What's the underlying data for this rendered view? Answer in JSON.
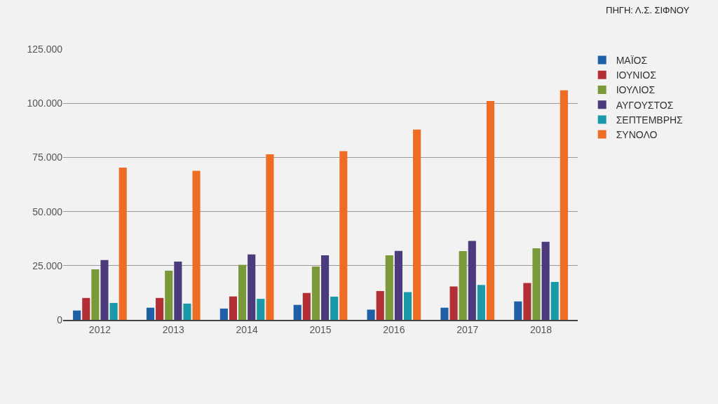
{
  "chart_data": {
    "type": "bar",
    "categories": [
      "2012",
      "2013",
      "2014",
      "2015",
      "2016",
      "2017",
      "2018"
    ],
    "series": [
      {
        "name": "ΜΑΪΟΣ",
        "color": "#1f5fa8",
        "values": [
          4300,
          5600,
          5200,
          6900,
          4700,
          5600,
          8500
        ]
      },
      {
        "name": "ΙΟΥΝΙΟΣ",
        "color": "#b22f35",
        "values": [
          10100,
          10100,
          10800,
          12400,
          13300,
          15400,
          17000
        ]
      },
      {
        "name": "ΙΟΥΛΙΟΣ",
        "color": "#7a9a3a",
        "values": [
          23300,
          22700,
          25400,
          24600,
          29800,
          31700,
          33000
        ]
      },
      {
        "name": "ΑΥΓΟΥΣΤΟΣ",
        "color": "#4b3b7c",
        "values": [
          27600,
          26900,
          30200,
          29800,
          31800,
          36400,
          36000
        ]
      },
      {
        "name": "ΣΕΠΤΕΜΒΡΗΣ",
        "color": "#1a9aa8",
        "values": [
          7800,
          7500,
          9700,
          10700,
          12800,
          16100,
          17500
        ]
      },
      {
        "name": "ΣΥΝΟΛΟ",
        "color": "#ee6c24",
        "values": [
          70300,
          68800,
          76400,
          77900,
          87800,
          101000,
          106000
        ]
      }
    ],
    "ylim": [
      0,
      125000
    ],
    "yticks": [
      {
        "value": 0,
        "label": "0"
      },
      {
        "value": 25000,
        "label": "25.000"
      },
      {
        "value": 50000,
        "label": "50.000"
      },
      {
        "value": 75000,
        "label": "75.000"
      },
      {
        "value": 100000,
        "label": "100.000"
      },
      {
        "value": 125000,
        "label": "125.000"
      }
    ],
    "grid": "y",
    "legend": "top right",
    "annotations": [
      "ΠΗΓΗ: Λ.Σ. ΣΙΦΝΟΥ"
    ]
  }
}
